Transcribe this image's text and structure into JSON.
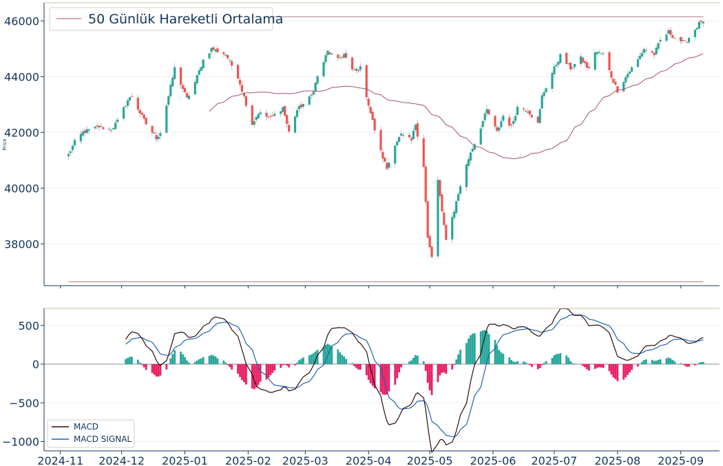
{
  "chart_data": [
    {
      "type": "candlestick",
      "panel": "price",
      "ylabel": "Price",
      "ylim": [
        36500,
        46650
      ],
      "yticks": [
        38000,
        40000,
        42000,
        44000,
        46000
      ],
      "grid": true,
      "legend": {
        "placement": "top-left",
        "entries": [
          "50 Günlük Hareketli Ortalama"
        ]
      },
      "colors": {
        "up": "#26a69a",
        "down": "#ef5350",
        "ma": "#a0506e",
        "wick": "#aaaaaa",
        "axis": "#13355b"
      },
      "horizontal_lines": [
        46150,
        36640
      ],
      "x_start": "2024-11-05",
      "ma_period": 50,
      "ma_label": "50 Günlük Hareketli Ortalama",
      "anchors": [
        [
          "2024-11-05",
          41200
        ],
        [
          "2024-11-08",
          41650
        ],
        [
          "2024-11-12",
          42000
        ],
        [
          "2024-11-20",
          42200
        ],
        [
          "2024-11-26",
          42100
        ],
        [
          "2024-11-29",
          42400
        ],
        [
          "2024-12-04",
          43150
        ],
        [
          "2024-12-06",
          43300
        ],
        [
          "2024-12-10",
          42700
        ],
        [
          "2024-12-13",
          42300
        ],
        [
          "2024-12-18",
          41800
        ],
        [
          "2024-12-20",
          42000
        ],
        [
          "2024-12-24",
          43300
        ],
        [
          "2024-12-27",
          44300
        ],
        [
          "2025-01-02",
          43200
        ],
        [
          "2025-01-06",
          43800
        ],
        [
          "2025-01-10",
          44600
        ],
        [
          "2025-01-14",
          45000
        ],
        [
          "2025-01-21",
          44800
        ],
        [
          "2025-01-27",
          44000
        ],
        [
          "2025-02-03",
          42300
        ],
        [
          "2025-02-06",
          42700
        ],
        [
          "2025-02-12",
          42500
        ],
        [
          "2025-02-18",
          42900
        ],
        [
          "2025-02-21",
          42000
        ],
        [
          "2025-02-25",
          42800
        ],
        [
          "2025-03-04",
          43300
        ],
        [
          "2025-03-07",
          44000
        ],
        [
          "2025-03-12",
          44900
        ],
        [
          "2025-03-17",
          44600
        ],
        [
          "2025-03-20",
          44800
        ],
        [
          "2025-03-24",
          44200
        ],
        [
          "2025-03-28",
          44300
        ],
        [
          "2025-04-01",
          43000
        ],
        [
          "2025-04-04",
          42100
        ],
        [
          "2025-04-07",
          41300
        ],
        [
          "2025-04-10",
          40700
        ],
        [
          "2025-04-14",
          41600
        ],
        [
          "2025-04-17",
          41900
        ],
        [
          "2025-04-22",
          41700
        ],
        [
          "2025-04-24",
          42300
        ],
        [
          "2025-04-28",
          40800
        ],
        [
          "2025-04-30",
          38200
        ],
        [
          "2025-05-02",
          37500
        ],
        [
          "2025-05-05",
          40300
        ],
        [
          "2025-05-07",
          39100
        ],
        [
          "2025-05-09",
          38200
        ],
        [
          "2025-05-13",
          39200
        ],
        [
          "2025-05-16",
          40100
        ],
        [
          "2025-05-21",
          41300
        ],
        [
          "2025-05-23",
          41600
        ],
        [
          "2025-05-27",
          42400
        ],
        [
          "2025-05-29",
          42800
        ],
        [
          "2025-06-03",
          42000
        ],
        [
          "2025-06-06",
          42600
        ],
        [
          "2025-06-10",
          42200
        ],
        [
          "2025-06-13",
          42900
        ],
        [
          "2025-06-18",
          42800
        ],
        [
          "2025-06-23",
          42300
        ],
        [
          "2025-06-25",
          43300
        ],
        [
          "2025-07-01",
          44300
        ],
        [
          "2025-07-04",
          44750
        ],
        [
          "2025-07-09",
          44300
        ],
        [
          "2025-07-14",
          44650
        ],
        [
          "2025-07-18",
          44250
        ],
        [
          "2025-07-21",
          44900
        ],
        [
          "2025-07-25",
          44800
        ],
        [
          "2025-07-29",
          44000
        ],
        [
          "2025-08-01",
          43500
        ],
        [
          "2025-08-06",
          44100
        ],
        [
          "2025-08-11",
          44600
        ],
        [
          "2025-08-14",
          45000
        ],
        [
          "2025-08-19",
          44800
        ],
        [
          "2025-08-22",
          45300
        ],
        [
          "2025-08-26",
          45600
        ],
        [
          "2025-08-29",
          45400
        ],
        [
          "2025-09-03",
          45200
        ],
        [
          "2025-09-08",
          45700
        ],
        [
          "2025-09-11",
          46000
        ],
        [
          "2025-09-12",
          45900
        ]
      ]
    },
    {
      "type": "line+bar",
      "panel": "macd",
      "ylim": [
        -1120,
        720
      ],
      "yticks": [
        -1000,
        -500,
        0,
        500
      ],
      "grid": true,
      "legend": {
        "placement": "bottom-left",
        "entries": [
          "MACD",
          "MACD SIGNAL"
        ]
      },
      "series": [
        {
          "name": "MACD",
          "color": "#2b0a0a"
        },
        {
          "name": "MACD SIGNAL",
          "color": "#1f5fb5"
        }
      ],
      "histogram_colors": {
        "positive": "#26a69a",
        "negative": "#e91e63"
      },
      "ema_fast": 12,
      "ema_slow": 26,
      "ema_signal": 9
    }
  ],
  "x_axis": {
    "labels": [
      "2024-11",
      "2024-12",
      "2025-01",
      "2025-02",
      "2025-03",
      "2025-04",
      "2025-05",
      "2025-06",
      "2025-07",
      "2025-08",
      "2025-09"
    ],
    "range": [
      "2024-10-24",
      "2025-09-20"
    ]
  }
}
